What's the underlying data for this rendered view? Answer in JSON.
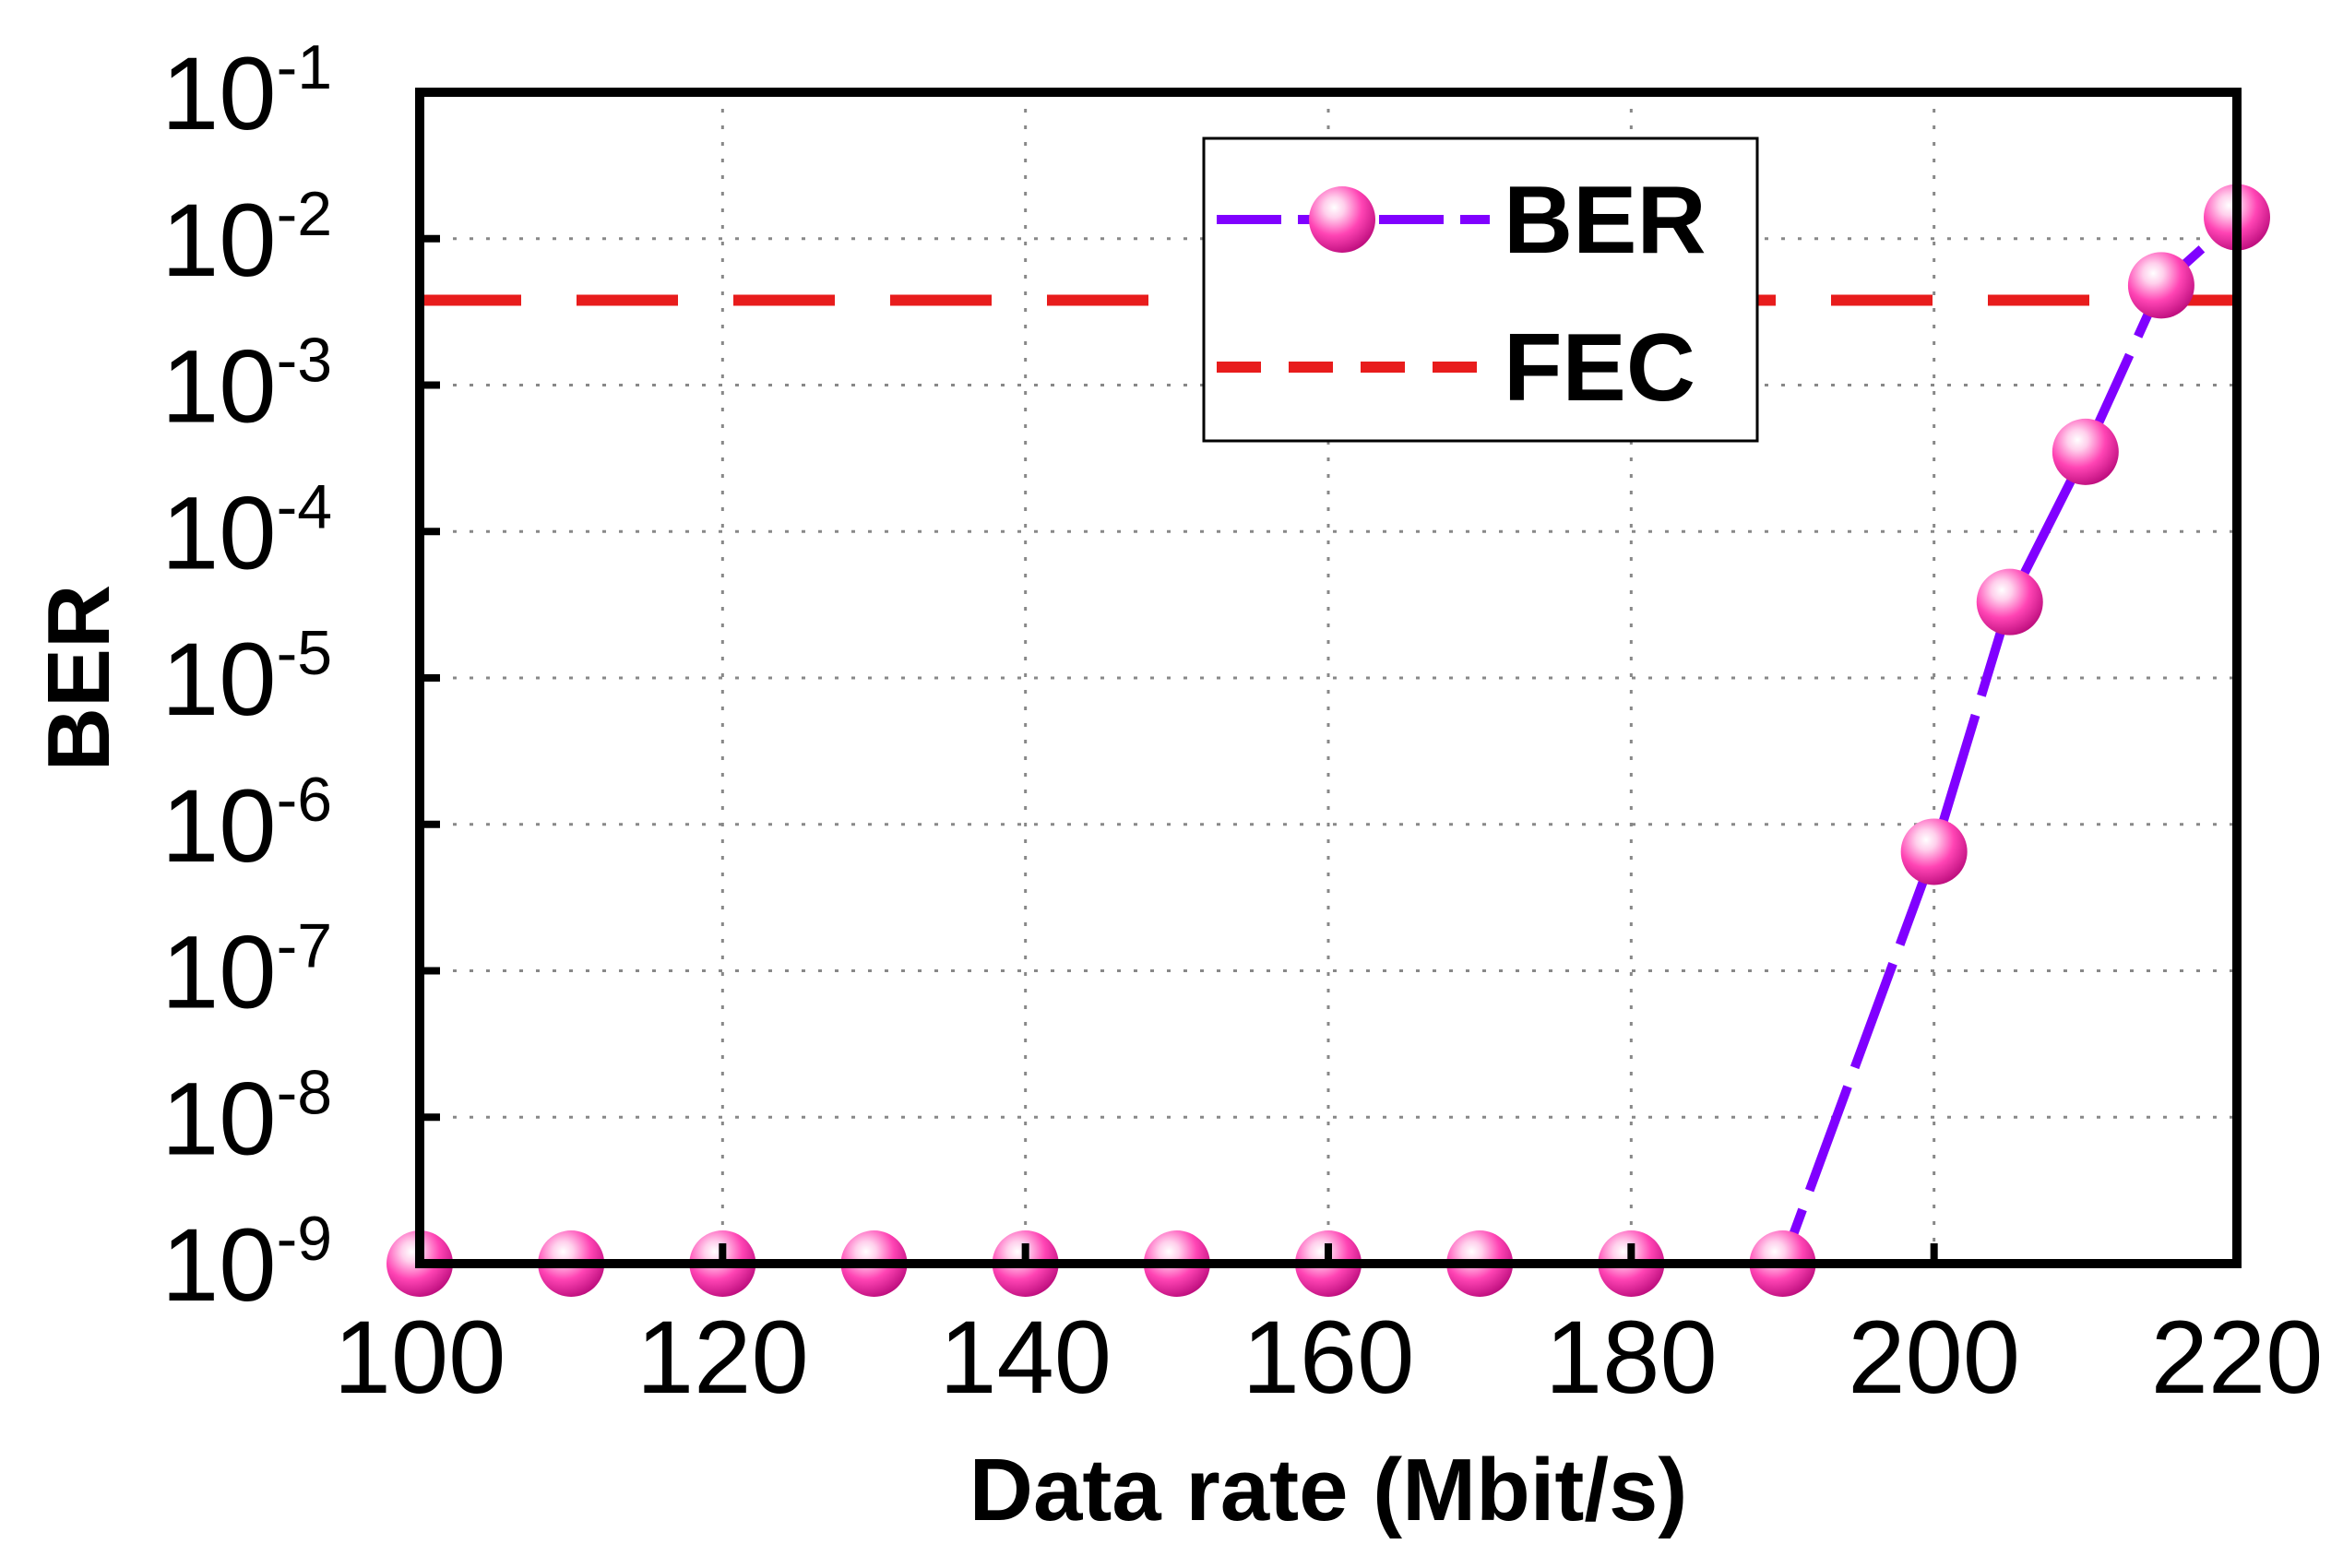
{
  "chart_data": {
    "type": "line",
    "xlabel": "Data rate (Mbit/s)",
    "ylabel": "BER",
    "xlim": [
      100,
      220
    ],
    "ylim_log10": [
      -9,
      -1
    ],
    "y_scale": "log",
    "grid": true,
    "legend_position": "top-center",
    "x_ticks": [
      100,
      120,
      140,
      160,
      180,
      200,
      220
    ],
    "x_tick_labels": [
      "100",
      "120",
      "140",
      "160",
      "180",
      "200",
      "220"
    ],
    "y_tick_base": "10",
    "y_ticks_log10": [
      -9,
      -8,
      -7,
      -6,
      -5,
      -4,
      -3,
      -2,
      -1
    ],
    "y_tick_exponents": [
      "-9",
      "-8",
      "-7",
      "-6",
      "-5",
      "-4",
      "-3",
      "-2",
      "-1"
    ],
    "series": [
      {
        "name": "BER",
        "color": "#8000ff",
        "marker_color": "#ff44b4",
        "x": [
          100,
          110,
          120,
          130,
          140,
          150,
          160,
          170,
          180,
          190,
          200,
          205,
          210,
          215,
          220
        ],
        "y": [
          1e-09,
          1e-09,
          1e-09,
          1e-09,
          1e-09,
          1e-09,
          1e-09,
          1e-09,
          1e-09,
          1e-09,
          6.5e-07,
          3.3e-05,
          0.00035,
          0.0048,
          0.014
        ]
      }
    ],
    "reference_lines": [
      {
        "name": "FEC",
        "y": 0.0038,
        "color": "#e81c1c",
        "style": "dashed"
      }
    ]
  }
}
